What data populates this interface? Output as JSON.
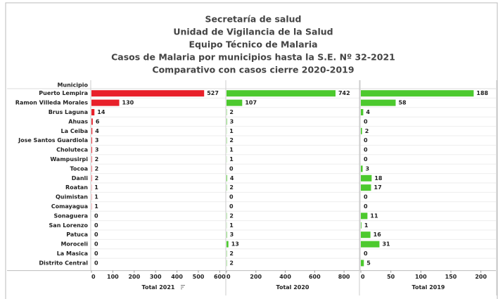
{
  "chart_data": {
    "type": "bar",
    "orientation": "horizontal",
    "title": [
      "Secretaría de salud",
      "Unidad de Vigilancia de la Salud",
      "Equipo Técnico de Malaria",
      "Casos de Malaria por municipios hasta la S.E. Nº 32-2021",
      "Comparativo con casos cierre 2020-2019"
    ],
    "ylabel": "Municipio",
    "categories": [
      "Puerto Lempira",
      "Ramon Villeda Morales",
      "Brus Laguna",
      "Ahuas",
      "La Ceiba",
      "Jose Santos Guardiola",
      "Choluteca",
      "Wampusirpi",
      "Tocoa",
      "Danli",
      "Roatan",
      "Quimistan",
      "Comayagua",
      "Sonaguera",
      "San Lorenzo",
      "Patuca",
      "Moroceli",
      "La Masica",
      "Distrito Central"
    ],
    "series": [
      {
        "name": "Total 2021",
        "color": "#e8202a",
        "values": [
          527,
          130,
          14,
          6,
          4,
          3,
          3,
          2,
          2,
          2,
          1,
          1,
          1,
          0,
          0,
          0,
          0,
          0,
          0
        ],
        "xlim": [
          0,
          625
        ],
        "xticks": [
          0,
          100,
          200,
          300,
          400,
          500,
          600
        ]
      },
      {
        "name": "Total 2020",
        "color": "#4cc92e",
        "values": [
          742,
          107,
          2,
          3,
          1,
          2,
          1,
          1,
          0,
          4,
          2,
          0,
          0,
          2,
          1,
          3,
          13,
          2,
          2
        ],
        "xlim": [
          0,
          900
        ],
        "xticks": [
          0,
          200,
          400,
          600,
          800
        ]
      },
      {
        "name": "Total 2019",
        "color": "#4cc92e",
        "values": [
          188,
          58,
          4,
          0,
          2,
          0,
          0,
          0,
          3,
          18,
          17,
          0,
          0,
          11,
          1,
          16,
          31,
          0,
          5
        ],
        "xlim": [
          0,
          225
        ],
        "xticks": [
          0,
          50,
          100,
          150,
          200
        ]
      }
    ]
  }
}
